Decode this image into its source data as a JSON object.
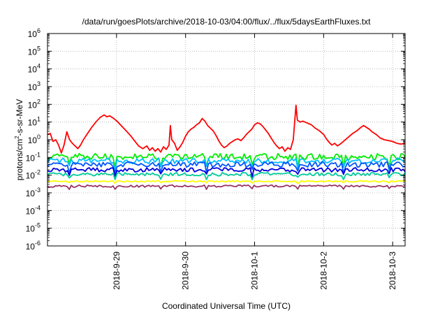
{
  "chart_data": {
    "type": "line",
    "title": "/data/run/goesPlots/archive/2018-10-03/04:00/flux/../flux/5daysEarthFluxes.txt",
    "xlabel": "Coordinated Universal Time (UTC)",
    "ylabel": "protons/cm2-s-sr-MeV",
    "ylabel_parts": {
      "pre": "protons/cm",
      "sup": "2",
      "post": "-s-sr-MeV"
    },
    "y_scale": "log",
    "ylim_exponents": [
      -6,
      6
    ],
    "y_ticks": [
      {
        "base": "10",
        "exp": "6"
      },
      {
        "base": "10",
        "exp": "5"
      },
      {
        "base": "10",
        "exp": "4"
      },
      {
        "base": "10",
        "exp": "3"
      },
      {
        "base": "10",
        "exp": "2"
      },
      {
        "base": "10",
        "exp": "1"
      },
      {
        "base": "10",
        "exp": "0"
      },
      {
        "base": "10",
        "exp": "-1"
      },
      {
        "base": "10",
        "exp": "-2"
      },
      {
        "base": "10",
        "exp": "-3"
      },
      {
        "base": "10",
        "exp": "-4"
      },
      {
        "base": "10",
        "exp": "-5"
      },
      {
        "base": "10",
        "exp": "-6"
      }
    ],
    "x_range_days": [
      0,
      5.18
    ],
    "x_ticks": [
      {
        "label": "2018-9-29",
        "day": 1.0
      },
      {
        "label": "2018-9-30",
        "day": 2.0
      },
      {
        "label": "2018-10-1",
        "day": 3.0
      },
      {
        "label": "2018-10-2",
        "day": 4.0
      },
      {
        "label": "2018-10-3",
        "day": 5.0
      }
    ],
    "grid": true,
    "legend": "none",
    "series": [
      {
        "color": "#ff0000",
        "log_points": [
          [
            0.0,
            0.3
          ],
          [
            0.04,
            0.35
          ],
          [
            0.08,
            -0.1
          ],
          [
            0.12,
            0.0
          ],
          [
            0.16,
            -0.3
          ],
          [
            0.2,
            -0.75
          ],
          [
            0.24,
            -0.3
          ],
          [
            0.28,
            0.45
          ],
          [
            0.32,
            0.0
          ],
          [
            0.36,
            -0.2
          ],
          [
            0.4,
            -0.35
          ],
          [
            0.44,
            -0.5
          ],
          [
            0.48,
            -0.3
          ],
          [
            0.52,
            0.0
          ],
          [
            0.58,
            0.35
          ],
          [
            0.64,
            0.7
          ],
          [
            0.7,
            1.0
          ],
          [
            0.76,
            1.25
          ],
          [
            0.82,
            1.4
          ],
          [
            0.86,
            1.3
          ],
          [
            0.9,
            1.35
          ],
          [
            0.96,
            1.2
          ],
          [
            1.02,
            1.0
          ],
          [
            1.08,
            0.75
          ],
          [
            1.14,
            0.5
          ],
          [
            1.2,
            0.25
          ],
          [
            1.26,
            -0.05
          ],
          [
            1.32,
            -0.35
          ],
          [
            1.38,
            -0.5
          ],
          [
            1.44,
            -0.35
          ],
          [
            1.48,
            -0.6
          ],
          [
            1.52,
            -0.45
          ],
          [
            1.56,
            -0.65
          ],
          [
            1.6,
            -0.5
          ],
          [
            1.64,
            -0.7
          ],
          [
            1.68,
            -0.4
          ],
          [
            1.72,
            -0.55
          ],
          [
            1.76,
            -0.3
          ],
          [
            1.78,
            0.8
          ],
          [
            1.8,
            0.0
          ],
          [
            1.84,
            -0.2
          ],
          [
            1.88,
            -0.6
          ],
          [
            1.92,
            -0.4
          ],
          [
            1.96,
            -0.15
          ],
          [
            2.0,
            0.2
          ],
          [
            2.04,
            0.45
          ],
          [
            2.08,
            0.6
          ],
          [
            2.12,
            0.7
          ],
          [
            2.16,
            0.85
          ],
          [
            2.2,
            0.95
          ],
          [
            2.24,
            1.2
          ],
          [
            2.28,
            1.05
          ],
          [
            2.32,
            0.8
          ],
          [
            2.36,
            0.65
          ],
          [
            2.4,
            0.5
          ],
          [
            2.44,
            0.25
          ],
          [
            2.48,
            -0.05
          ],
          [
            2.52,
            -0.3
          ],
          [
            2.56,
            -0.45
          ],
          [
            2.6,
            -0.35
          ],
          [
            2.64,
            -0.2
          ],
          [
            2.68,
            -0.1
          ],
          [
            2.72,
            0.0
          ],
          [
            2.76,
            0.05
          ],
          [
            2.8,
            -0.05
          ],
          [
            2.84,
            0.1
          ],
          [
            2.88,
            0.3
          ],
          [
            2.92,
            0.45
          ],
          [
            2.96,
            0.6
          ],
          [
            3.0,
            0.85
          ],
          [
            3.04,
            0.95
          ],
          [
            3.08,
            0.9
          ],
          [
            3.12,
            0.75
          ],
          [
            3.16,
            0.55
          ],
          [
            3.2,
            0.35
          ],
          [
            3.24,
            0.1
          ],
          [
            3.28,
            -0.15
          ],
          [
            3.32,
            -0.35
          ],
          [
            3.36,
            -0.5
          ],
          [
            3.4,
            -0.4
          ],
          [
            3.44,
            -0.65
          ],
          [
            3.48,
            -0.45
          ],
          [
            3.52,
            -0.55
          ],
          [
            3.56,
            0.0
          ],
          [
            3.6,
            1.95
          ],
          [
            3.62,
            1.1
          ],
          [
            3.66,
            1.0
          ],
          [
            3.7,
            1.05
          ],
          [
            3.76,
            0.95
          ],
          [
            3.82,
            0.85
          ],
          [
            3.88,
            0.65
          ],
          [
            3.94,
            0.5
          ],
          [
            4.0,
            0.3
          ],
          [
            4.04,
            0.05
          ],
          [
            4.08,
            -0.15
          ],
          [
            4.12,
            -0.3
          ],
          [
            4.16,
            -0.2
          ],
          [
            4.2,
            -0.35
          ],
          [
            4.24,
            -0.25
          ],
          [
            4.3,
            -0.05
          ],
          [
            4.36,
            0.15
          ],
          [
            4.42,
            0.35
          ],
          [
            4.48,
            0.5
          ],
          [
            4.54,
            0.7
          ],
          [
            4.58,
            0.8
          ],
          [
            4.62,
            0.7
          ],
          [
            4.66,
            0.6
          ],
          [
            4.7,
            0.45
          ],
          [
            4.76,
            0.3
          ],
          [
            4.82,
            0.1
          ],
          [
            4.88,
            0.0
          ],
          [
            4.94,
            -0.05
          ],
          [
            5.0,
            -0.1
          ],
          [
            5.06,
            -0.2
          ],
          [
            5.12,
            -0.25
          ],
          [
            5.18,
            -0.2
          ]
        ]
      },
      {
        "color": "#00ee00",
        "mean": -0.95,
        "noise": 0.18
      },
      {
        "color": "#00bfff",
        "mean": -1.2,
        "noise": 0.16
      },
      {
        "color": "#0055ff",
        "mean": -1.4,
        "noise": 0.15
      },
      {
        "color": "#0000dd",
        "mean": -1.7,
        "noise": 0.12
      },
      {
        "color": "#00cc99",
        "mean": -1.95,
        "noise": 0.1
      },
      {
        "color": "#ffff00",
        "mean": -2.35,
        "noise": 0.04
      },
      {
        "color": "#993366",
        "mean": -2.62,
        "noise": 0.06
      }
    ]
  }
}
